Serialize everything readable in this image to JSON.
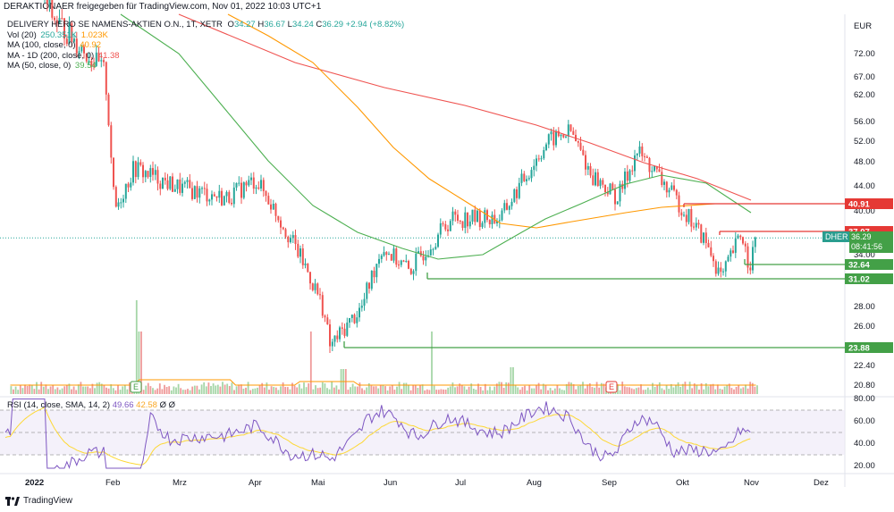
{
  "header": {
    "publisher_line": "DERAKTIONAER freigegeben für TradingView.com, Nov 01, 2022 10:03 UTC+1"
  },
  "legend": {
    "symbol_line": "DELIVERY HERO SE NAMENS-AKTIEN O.N., 1T, XETR",
    "ohlc": {
      "o_label": "O",
      "o": "34.27",
      "h_label": "H",
      "h": "36.67",
      "l_label": "L",
      "l": "34.24",
      "c_label": "C",
      "c": "36.29",
      "chg": "+2.94 (+8.82%)"
    },
    "vol": {
      "label": "Vol (20)",
      "v1": "250.351K",
      "v2": "1.023K"
    },
    "ma100": {
      "label": "MA (100, close, 0)",
      "value": "40.92"
    },
    "ma200": {
      "label": "MA - 1D (200, close, 0)",
      "value": "41.38"
    },
    "ma50": {
      "label": "MA (50, close, 0)",
      "value": "39.54"
    }
  },
  "rsi_legend": {
    "label": "RSI (14, close, SMA, 14, 2)",
    "v1": "49.66",
    "v2": "42.58",
    "v3": "Ø",
    "v4": "Ø"
  },
  "footer": {
    "brand": "TradingView"
  },
  "current_price": {
    "ticker": "DHER",
    "price": "36.29",
    "countdown": "08:41:56"
  },
  "colors": {
    "up": "#26a69a",
    "down": "#ef5350",
    "ma50": "#4caf50",
    "ma100": "#ff9800",
    "ma200": "#ef5350",
    "rsi": "#7e57c2",
    "rsi_ma": "#fdd835",
    "hline_green": "#43a047",
    "hline_red": "#e53935",
    "vol_up": "#a5d6a7",
    "vol_down": "#ef9a9a"
  },
  "chart_data": {
    "type": "line",
    "currency": "EUR",
    "price_ticks": [
      72.0,
      67.0,
      62.0,
      56.0,
      52.0,
      48.0,
      44.0,
      40.0,
      34.0,
      31.0,
      28.0,
      26.0,
      24.0,
      22.4,
      20.8
    ],
    "price_tick_labels": [
      "72.00",
      "67.00",
      "62.00",
      "56.00",
      "52.00",
      "48.00",
      "44.00",
      "40.00",
      "34.00",
      "31.00",
      "28.00",
      "26.00",
      "24.00",
      "22.40",
      "20.80"
    ],
    "x_tick_labels": [
      "2022",
      "Feb",
      "Mrz",
      "Apr",
      "Mai",
      "Jun",
      "Jul",
      "Aug",
      "Sep",
      "Okt",
      "Nov",
      "Dez"
    ],
    "rsi_ticks": [
      80.0,
      60.0,
      40.0,
      20.0
    ],
    "rsi_tick_labels": [
      "80.00",
      "60.00",
      "40.00",
      "20.00"
    ],
    "levels": [
      {
        "value": 40.91,
        "label": "40.91",
        "color": "red"
      },
      {
        "value": 37.07,
        "label": "37.07",
        "color": "red"
      },
      {
        "value": 32.64,
        "label": "32.64",
        "color": "green"
      },
      {
        "value": 31.02,
        "label": "31.02",
        "color": "green"
      },
      {
        "value": 23.88,
        "label": "23.88",
        "color": "green"
      }
    ],
    "earnings_markers": [
      "E",
      "E"
    ],
    "close_path_approx": [
      {
        "x": "2022-01-03",
        "y": 100
      },
      {
        "x": "2022-01-20",
        "y": 80
      },
      {
        "x": "2022-02-10",
        "y": 68
      },
      {
        "x": "2022-02-14",
        "y": 40
      },
      {
        "x": "2022-02-22",
        "y": 47
      },
      {
        "x": "2022-03-10",
        "y": 44
      },
      {
        "x": "2022-03-31",
        "y": 42
      },
      {
        "x": "2022-04-12",
        "y": 45
      },
      {
        "x": "2022-04-28",
        "y": 35
      },
      {
        "x": "2022-05-09",
        "y": 28
      },
      {
        "x": "2022-05-12",
        "y": 24
      },
      {
        "x": "2022-05-25",
        "y": 28
      },
      {
        "x": "2022-06-02",
        "y": 35
      },
      {
        "x": "2022-06-13",
        "y": 32
      },
      {
        "x": "2022-06-30",
        "y": 39
      },
      {
        "x": "2022-07-20",
        "y": 39
      },
      {
        "x": "2022-08-01",
        "y": 47
      },
      {
        "x": "2022-08-08",
        "y": 52
      },
      {
        "x": "2022-08-17",
        "y": 54
      },
      {
        "x": "2022-08-25",
        "y": 46
      },
      {
        "x": "2022-09-05",
        "y": 42
      },
      {
        "x": "2022-09-13",
        "y": 50
      },
      {
        "x": "2022-09-28",
        "y": 42
      },
      {
        "x": "2022-10-10",
        "y": 36
      },
      {
        "x": "2022-10-17",
        "y": 31
      },
      {
        "x": "2022-10-25",
        "y": 37
      },
      {
        "x": "2022-10-28",
        "y": 32.6
      },
      {
        "x": "2022-10-31",
        "y": 36.29
      }
    ]
  }
}
